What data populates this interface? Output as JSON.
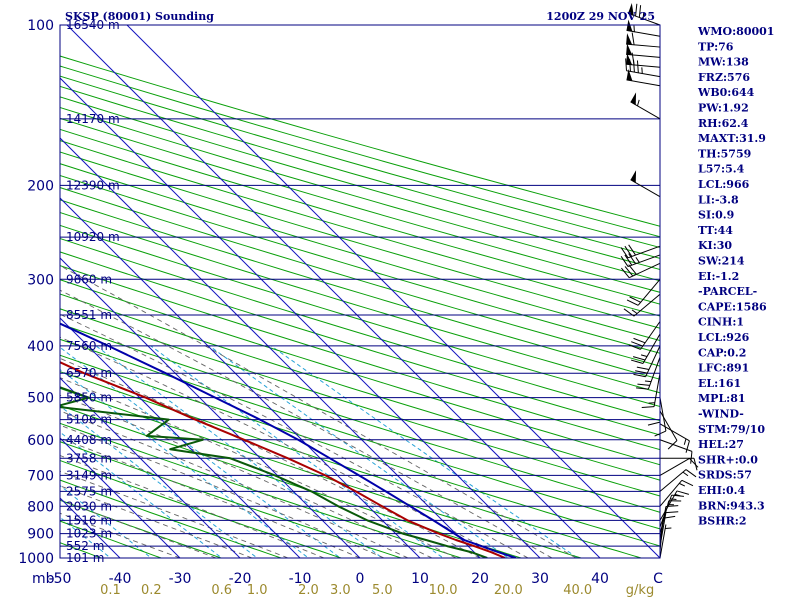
{
  "header": {
    "title": "SKSP (80001) Sounding",
    "time": "1200Z 29 NOV 25"
  },
  "colors": {
    "frame": "#000080",
    "isobar": "#000080",
    "isotherm": "#1515c0",
    "dry_adiabat": "#0aa00a",
    "moist_adiabat": "#666666",
    "mixing_ratio": "#2aa4d8",
    "temperature": "#aa0000",
    "dewpoint": "#0a5a0a",
    "parcel": "#0000aa",
    "mixing_label": "#9c8a2e",
    "wind": "#000000"
  },
  "chart_data": {
    "type": "line",
    "subtype": "skew-t log-p sounding",
    "title": "SKSP (80001) Sounding",
    "ylabel": "mb",
    "xlabel": "C",
    "mixing_ratio_unit": "g/kg",
    "ylim": [
      1000,
      100
    ],
    "xlim": [
      -50,
      50
    ],
    "y_scale": "log",
    "pressure_ticks": [
      {
        "p": 100,
        "label": "100"
      },
      {
        "p": 200,
        "label": "200"
      },
      {
        "p": 300,
        "label": "300"
      },
      {
        "p": 400,
        "label": "400"
      },
      {
        "p": 500,
        "label": "500"
      },
      {
        "p": 600,
        "label": "600"
      },
      {
        "p": 700,
        "label": "700"
      },
      {
        "p": 800,
        "label": "800"
      },
      {
        "p": 900,
        "label": "900"
      },
      {
        "p": 1000,
        "label": "1000"
      }
    ],
    "height_levels": [
      {
        "p": 100,
        "label": "16540 m"
      },
      {
        "p": 150,
        "label": "14170 m"
      },
      {
        "p": 200,
        "label": "12390 m"
      },
      {
        "p": 250,
        "label": "10920 m"
      },
      {
        "p": 300,
        "label": "9660 m"
      },
      {
        "p": 350,
        "label": "8551 m"
      },
      {
        "p": 400,
        "label": "7560 m"
      },
      {
        "p": 450,
        "label": "6570 m"
      },
      {
        "p": 500,
        "label": "5850 m"
      },
      {
        "p": 550,
        "label": "5106 m"
      },
      {
        "p": 600,
        "label": "4408 m"
      },
      {
        "p": 650,
        "label": "3758 m"
      },
      {
        "p": 700,
        "label": "3149 m"
      },
      {
        "p": 750,
        "label": "2575 m"
      },
      {
        "p": 800,
        "label": "2030 m"
      },
      {
        "p": 850,
        "label": "1516 m"
      },
      {
        "p": 900,
        "label": "1023 m"
      },
      {
        "p": 950,
        "label": "552 m"
      },
      {
        "p": 1000,
        "label": "101 m"
      }
    ],
    "temperature_ticks": [
      {
        "t": -50,
        "label": "-50"
      },
      {
        "t": -40,
        "label": "-40"
      },
      {
        "t": -30,
        "label": "-30"
      },
      {
        "t": -20,
        "label": "-20"
      },
      {
        "t": -10,
        "label": "-10"
      },
      {
        "t": 0,
        "label": "0"
      },
      {
        "t": 10,
        "label": "10"
      },
      {
        "t": 20,
        "label": "20"
      },
      {
        "t": 30,
        "label": "30"
      },
      {
        "t": 40,
        "label": "40"
      }
    ],
    "mixing_ratio_ticks": [
      {
        "w": 0.1,
        "label": "0.1"
      },
      {
        "w": 0.2,
        "label": "0.2"
      },
      {
        "w": 0.6,
        "label": "0.6"
      },
      {
        "w": 1.0,
        "label": "1.0"
      },
      {
        "w": 2.0,
        "label": "2.0"
      },
      {
        "w": 3.0,
        "label": "3.0"
      },
      {
        "w": 5.0,
        "label": "5.0"
      },
      {
        "w": 10.0,
        "label": "10.0"
      },
      {
        "w": 20.0,
        "label": "20.0"
      },
      {
        "w": 40.0,
        "label": "40.0"
      }
    ],
    "dry_adiabats_theta_k": [
      230,
      240,
      250,
      260,
      270,
      280,
      290,
      300,
      310,
      320,
      330,
      340,
      350,
      360,
      370,
      380,
      390,
      400,
      410,
      420,
      430,
      440,
      450,
      460,
      470,
      480,
      490,
      500,
      510,
      520,
      530,
      540,
      550,
      560,
      570
    ],
    "moist_adiabats_c": [
      -30,
      -24,
      -18,
      -12,
      -6,
      0,
      4,
      8,
      12,
      16,
      20,
      24,
      28,
      32,
      36
    ],
    "series": [
      {
        "name": "Temperature",
        "points": [
          [
            1000,
            24.2
          ],
          [
            975,
            22.8
          ],
          [
            950,
            21.0
          ],
          [
            925,
            19.0
          ],
          [
            900,
            17.2
          ],
          [
            850,
            14.2
          ],
          [
            800,
            12.3
          ],
          [
            750,
            10.4
          ],
          [
            700,
            8.0
          ],
          [
            650,
            4.6
          ],
          [
            600,
            0.4
          ],
          [
            550,
            -4.4
          ],
          [
            500,
            -9.0
          ],
          [
            450,
            -15.2
          ],
          [
            400,
            -20.6
          ],
          [
            350,
            -27.0
          ],
          [
            300,
            -34.5
          ],
          [
            250,
            -43.6
          ],
          [
            200,
            -54.8
          ],
          [
            175,
            -59.0
          ],
          [
            150,
            -62.0
          ],
          [
            125,
            -67.5
          ],
          [
            110,
            -72.5
          ],
          [
            104,
            -73.0
          ],
          [
            100,
            -74.5
          ]
        ]
      },
      {
        "name": "Dewpoint",
        "points": [
          [
            1000,
            21.2
          ],
          [
            975,
            19.5
          ],
          [
            950,
            16.5
          ],
          [
            925,
            14.0
          ],
          [
            900,
            11.2
          ],
          [
            850,
            7.5
          ],
          [
            800,
            5.0
          ],
          [
            750,
            3.0
          ],
          [
            700,
            -0.4
          ],
          [
            650,
            -5.0
          ],
          [
            625,
            -13.5
          ],
          [
            600,
            -6.5
          ],
          [
            590,
            -15.2
          ],
          [
            550,
            -8.8
          ],
          [
            520,
            -25.5
          ],
          [
            500,
            -18.5
          ],
          [
            475,
            -22.0
          ],
          [
            450,
            -24.5
          ],
          [
            400,
            -22.0
          ],
          [
            350,
            -31.0
          ],
          [
            300,
            -41.0
          ],
          [
            250,
            -51.0
          ],
          [
            230,
            -56.5
          ],
          [
            200,
            -58.0
          ],
          [
            180,
            -58.5
          ],
          [
            175,
            -64.5
          ],
          [
            170,
            -73.0
          ],
          [
            160,
            -76.0
          ],
          [
            130,
            -80.0
          ],
          [
            110,
            -81.5
          ],
          [
            104,
            -83.5
          ],
          [
            100,
            -84.5
          ]
        ]
      },
      {
        "name": "Parcel",
        "points": [
          [
            1000,
            26.0
          ],
          [
            975,
            24.0
          ],
          [
            950,
            22.2
          ],
          [
            926,
            20.4
          ],
          [
            900,
            19.8
          ],
          [
            850,
            18.5
          ],
          [
            800,
            17.0
          ],
          [
            750,
            15.4
          ],
          [
            700,
            13.6
          ],
          [
            650,
            11.6
          ],
          [
            600,
            9.4
          ],
          [
            550,
            6.4
          ],
          [
            500,
            2.6
          ],
          [
            450,
            -1.6
          ],
          [
            400,
            -6.6
          ],
          [
            350,
            -12.6
          ],
          [
            300,
            -19.8
          ],
          [
            250,
            -28.8
          ],
          [
            200,
            -40.0
          ],
          [
            161,
            -50.5
          ],
          [
            150,
            -54.0
          ],
          [
            125,
            -62.0
          ],
          [
            110,
            -67.5
          ],
          [
            100,
            -71.5
          ]
        ]
      }
    ],
    "wind_barbs": [
      {
        "p": 100,
        "dir": 290,
        "spd": 75
      },
      {
        "p": 105,
        "dir": 280,
        "spd": 55
      },
      {
        "p": 110,
        "dir": 275,
        "spd": 60
      },
      {
        "p": 115,
        "dir": 275,
        "spd": 50
      },
      {
        "p": 120,
        "dir": 275,
        "spd": 60
      },
      {
        "p": 125,
        "dir": 280,
        "spd": 45
      },
      {
        "p": 130,
        "dir": 280,
        "spd": 50
      },
      {
        "p": 150,
        "dir": 300,
        "spd": 55
      },
      {
        "p": 210,
        "dir": 300,
        "spd": 50
      },
      {
        "p": 260,
        "dir": 250,
        "spd": 30
      },
      {
        "p": 270,
        "dir": 250,
        "spd": 35
      },
      {
        "p": 280,
        "dir": 245,
        "spd": 30
      },
      {
        "p": 300,
        "dir": 220,
        "spd": 20
      },
      {
        "p": 320,
        "dir": 230,
        "spd": 15
      },
      {
        "p": 360,
        "dir": 215,
        "spd": 30
      },
      {
        "p": 380,
        "dir": 210,
        "spd": 25
      },
      {
        "p": 400,
        "dir": 205,
        "spd": 30
      },
      {
        "p": 420,
        "dir": 200,
        "spd": 25
      },
      {
        "p": 450,
        "dir": 190,
        "spd": 15
      },
      {
        "p": 480,
        "dir": 180,
        "spd": 10
      },
      {
        "p": 500,
        "dir": 170,
        "spd": 10
      },
      {
        "p": 530,
        "dir": 150,
        "spd": 10
      },
      {
        "p": 560,
        "dir": 120,
        "spd": 15
      },
      {
        "p": 600,
        "dir": 110,
        "spd": 10
      },
      {
        "p": 650,
        "dir": 90,
        "spd": 10
      },
      {
        "p": 700,
        "dir": 60,
        "spd": 10
      },
      {
        "p": 750,
        "dir": 50,
        "spd": 15
      },
      {
        "p": 800,
        "dir": 40,
        "spd": 15
      },
      {
        "p": 850,
        "dir": 30,
        "spd": 15
      },
      {
        "p": 875,
        "dir": 20,
        "spd": 15
      },
      {
        "p": 900,
        "dir": 15,
        "spd": 15
      },
      {
        "p": 925,
        "dir": 10,
        "spd": 10
      },
      {
        "p": 950,
        "dir": 10,
        "spd": 10
      },
      {
        "p": 975,
        "dir": 5,
        "spd": 10
      },
      {
        "p": 1000,
        "dir": 10,
        "spd": 5
      }
    ],
    "grid": true,
    "legend": "none"
  },
  "indices": [
    "WMO:80001",
    "TP:76",
    "MW:138",
    "FRZ:576",
    "WB0:644",
    "PW:1.92",
    "RH:62.4",
    "MAXT:31.9",
    "TH:5759",
    "L57:5.4",
    "LCL:966",
    "LI:-3.8",
    "SI:0.9",
    "TT:44",
    "KI:30",
    "SW:214",
    "EI:-1.2",
    "-PARCEL-",
    "CAPE:1586",
    "CINH:1",
    "LCL:926",
    "CAP:0.2",
    "LFC:891",
    "EL:161",
    "MPL:81",
    "-WIND-",
    "STM:79/10",
    "HEL:27",
    "SHR+:0.0",
    "SRDS:57",
    "EHI:0.4",
    "BRN:943.3",
    "BSHR:2"
  ]
}
